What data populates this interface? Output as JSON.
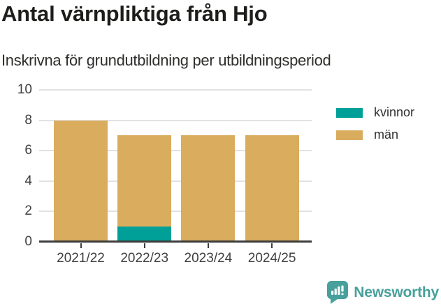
{
  "header": {
    "title": "Antal värnpliktiga från Hjo",
    "subtitle": "Inskrivna för grundutbildning per utbildningsperiod"
  },
  "chart_data": {
    "type": "bar",
    "stacked": true,
    "title": "Antal värnpliktiga från Hjo",
    "subtitle": "Inskrivna för grundutbildning per utbildningsperiod",
    "categories": [
      "2021/22",
      "2022/23",
      "2023/24",
      "2024/25"
    ],
    "series": [
      {
        "name": "kvinnor",
        "color": "#00a099",
        "values": [
          0,
          1,
          0,
          0
        ]
      },
      {
        "name": "män",
        "color": "#d9ac5e",
        "values": [
          8,
          6,
          7,
          7
        ]
      }
    ],
    "totals": [
      8,
      7,
      7,
      7
    ],
    "xlabel": "",
    "ylabel": "",
    "ylim": [
      0,
      10
    ],
    "yticks": [
      0,
      2,
      4,
      6,
      8,
      10
    ],
    "grid": true,
    "legend_position": "top-right",
    "colors": {
      "grid": "#e2e2e2",
      "axis": "#3d3d3d",
      "tick_label": "#3f3f3f"
    }
  },
  "legend": {
    "items": [
      {
        "label": "kvinnor",
        "color": "#00a099"
      },
      {
        "label": "män",
        "color": "#d9ac5e"
      }
    ]
  },
  "branding": {
    "logo_text": "Newsworthy",
    "color": "#47a09b",
    "icon": "bar-chart-speech-bubble-icon"
  }
}
